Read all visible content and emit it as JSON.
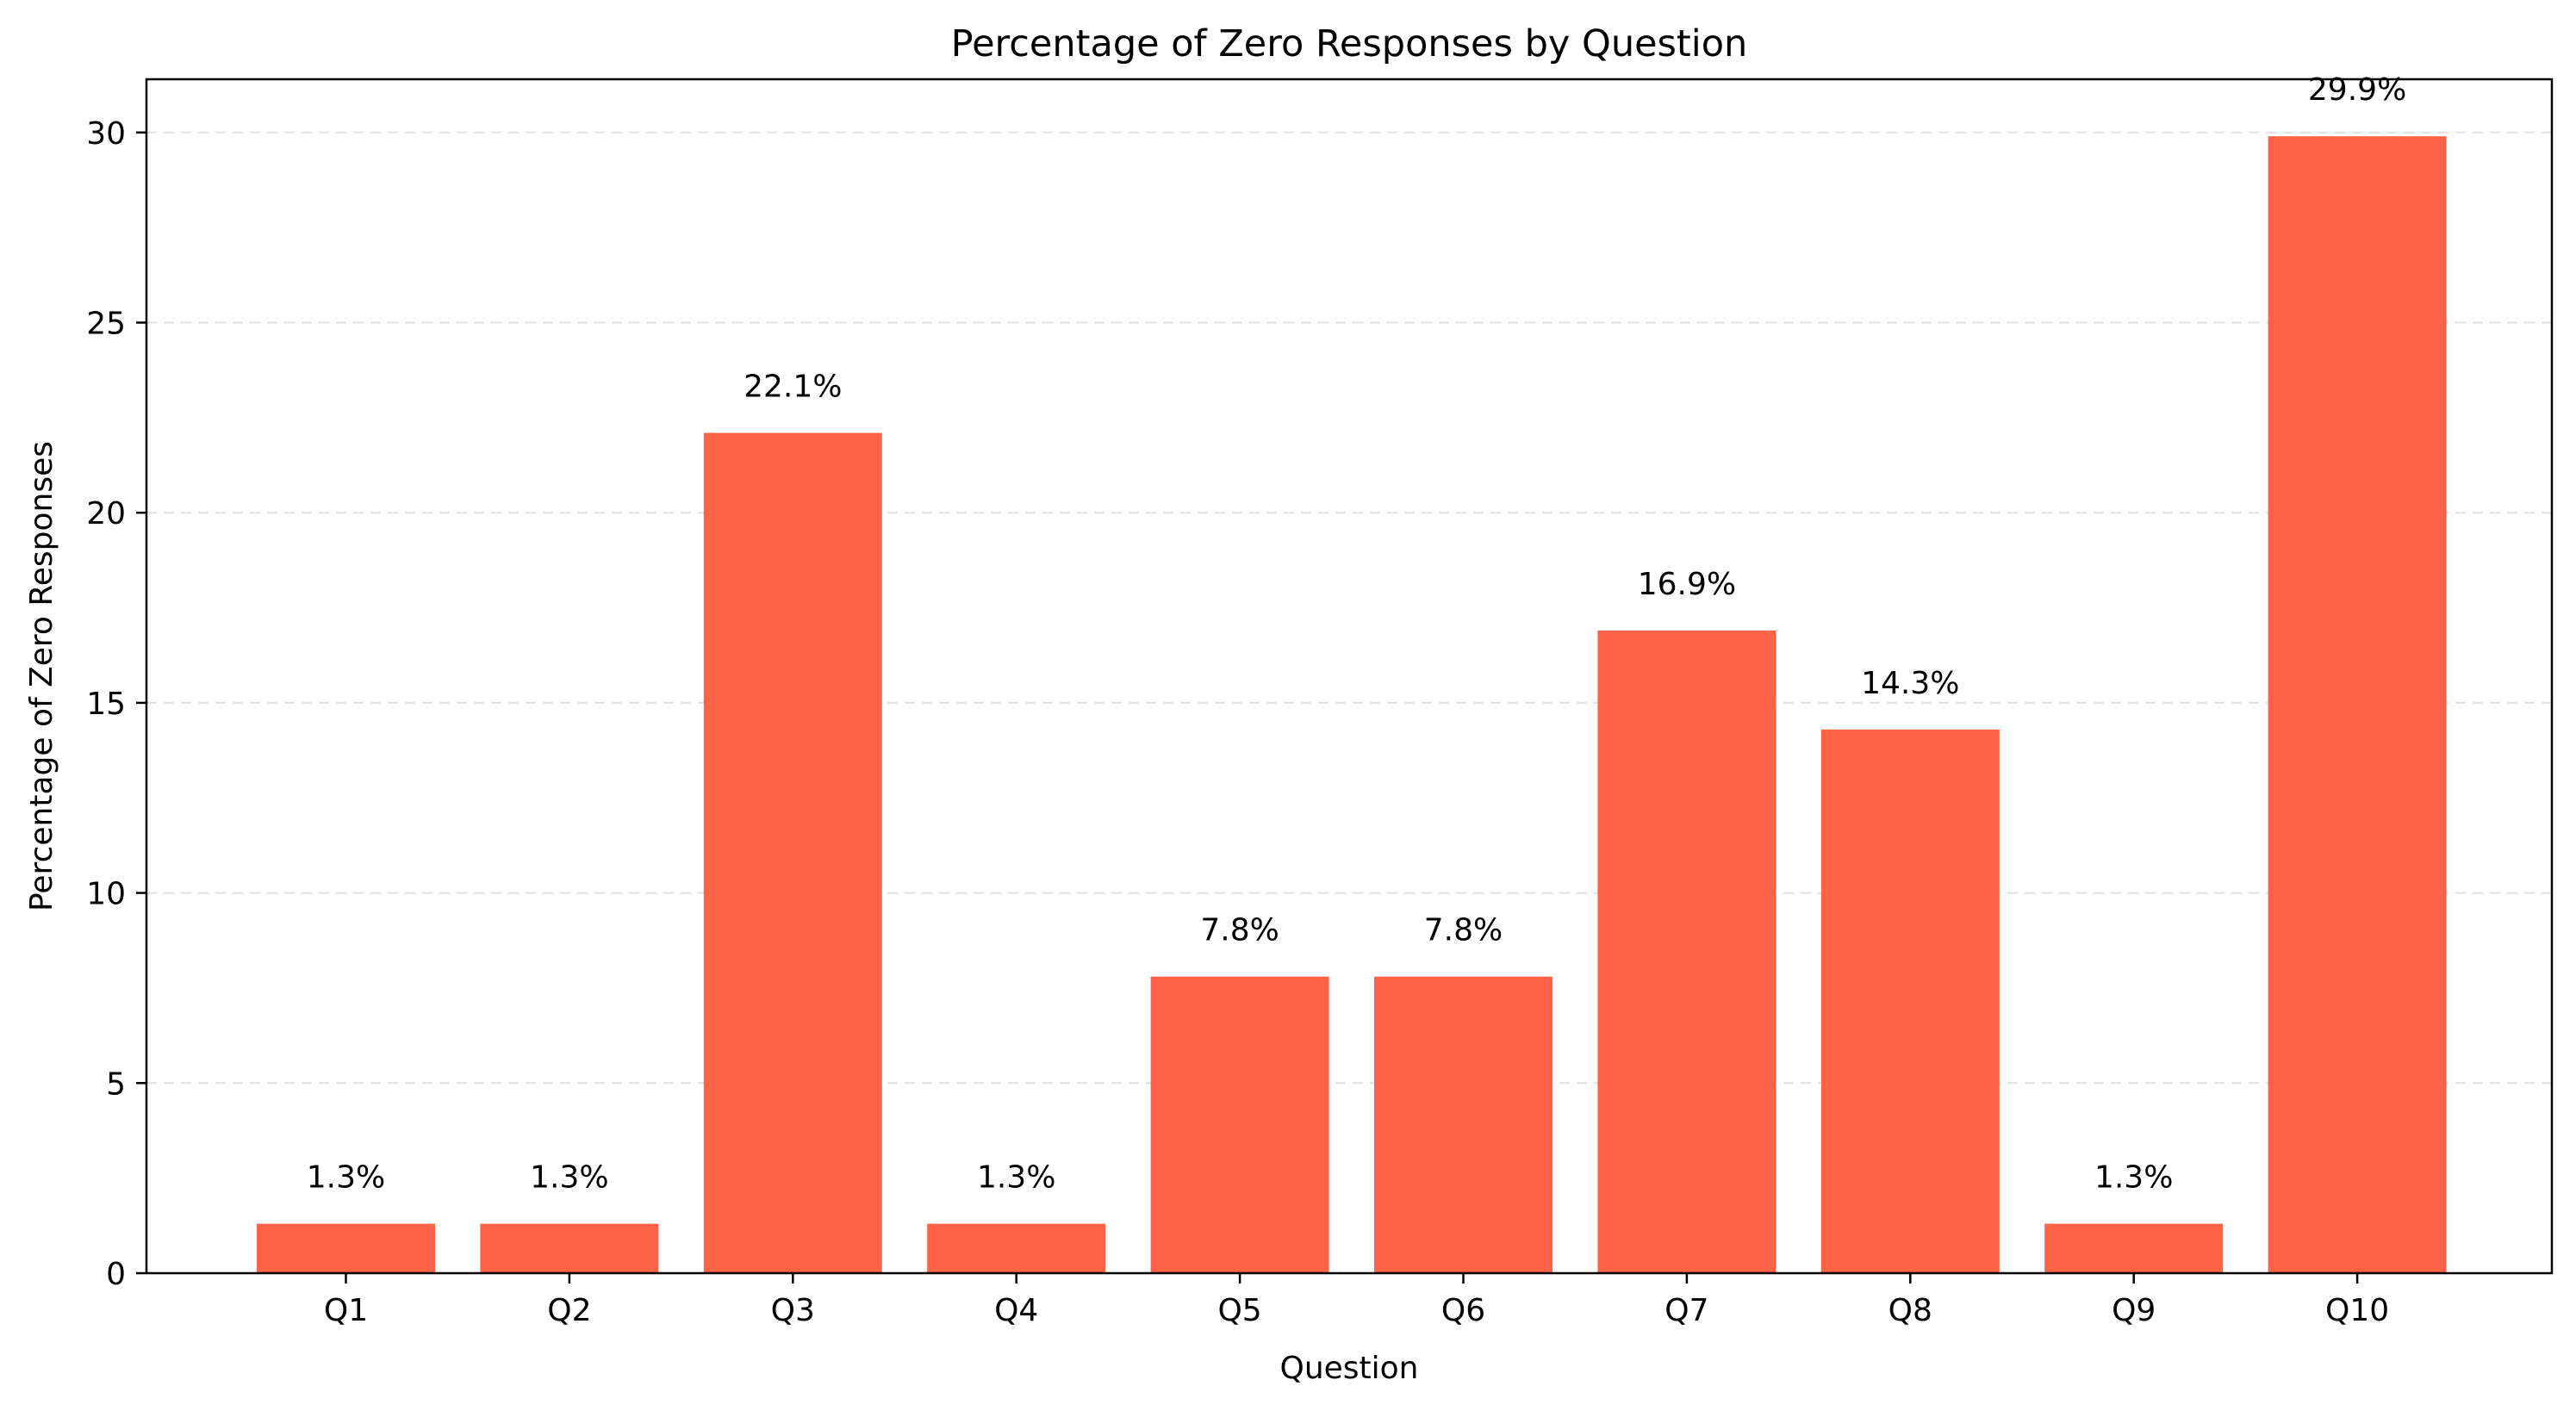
{
  "chart_data": {
    "type": "bar",
    "title": "Percentage of Zero Responses by Question",
    "xlabel": "Question",
    "ylabel": "Percentage of Zero Responses",
    "categories": [
      "Q1",
      "Q2",
      "Q3",
      "Q4",
      "Q5",
      "Q6",
      "Q7",
      "Q8",
      "Q9",
      "Q10"
    ],
    "values": [
      1.3,
      1.3,
      22.1,
      1.3,
      7.8,
      7.8,
      16.9,
      14.3,
      1.3,
      29.9
    ],
    "data_labels": [
      "1.3%",
      "1.3%",
      "22.1%",
      "1.3%",
      "7.8%",
      "7.8%",
      "16.9%",
      "14.3%",
      "1.3%",
      "29.9%"
    ],
    "ylim": [
      0,
      31.4
    ],
    "yticks": [
      0,
      5,
      10,
      15,
      20,
      25,
      30
    ],
    "ytick_labels": [
      "0",
      "5",
      "10",
      "15",
      "20",
      "25",
      "30"
    ],
    "grid": {
      "y": true,
      "x": false,
      "style": "dashed"
    },
    "colors": {
      "bar": "#ff6347",
      "grid": "#e0e0e0",
      "axis": "#000000"
    }
  }
}
